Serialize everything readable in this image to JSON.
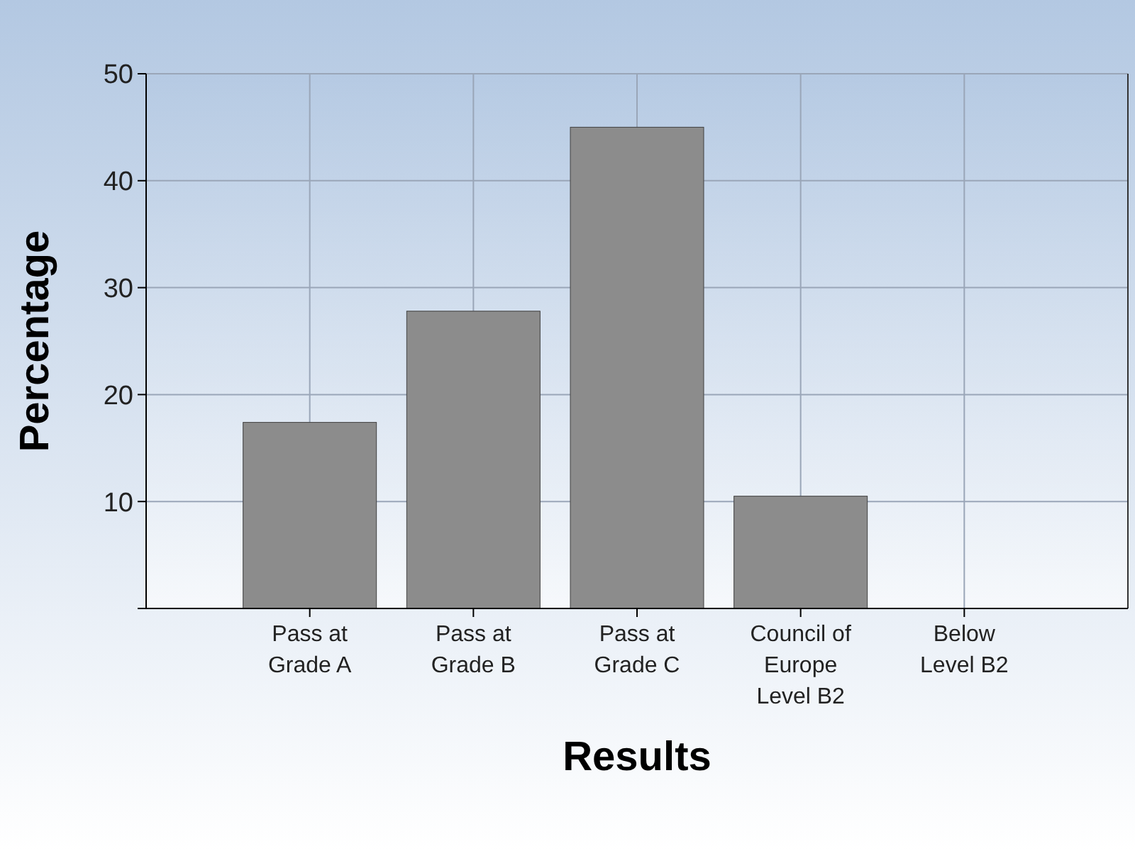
{
  "chart_data": {
    "type": "bar",
    "xlabel": "Results",
    "ylabel": "Percentage",
    "categories": [
      "Pass at Grade A",
      "Pass at Grade B",
      "Pass at Grade C",
      "Council of Europe Level B2",
      "Below Level B2"
    ],
    "values": [
      17.4,
      27.8,
      45.0,
      10.5,
      0
    ],
    "color": "#8c8c8c",
    "ylim": [
      0,
      50
    ],
    "yticks": [
      {
        "value": 0,
        "label": null
      },
      10,
      20,
      30,
      40,
      50
    ],
    "grid": true
  }
}
